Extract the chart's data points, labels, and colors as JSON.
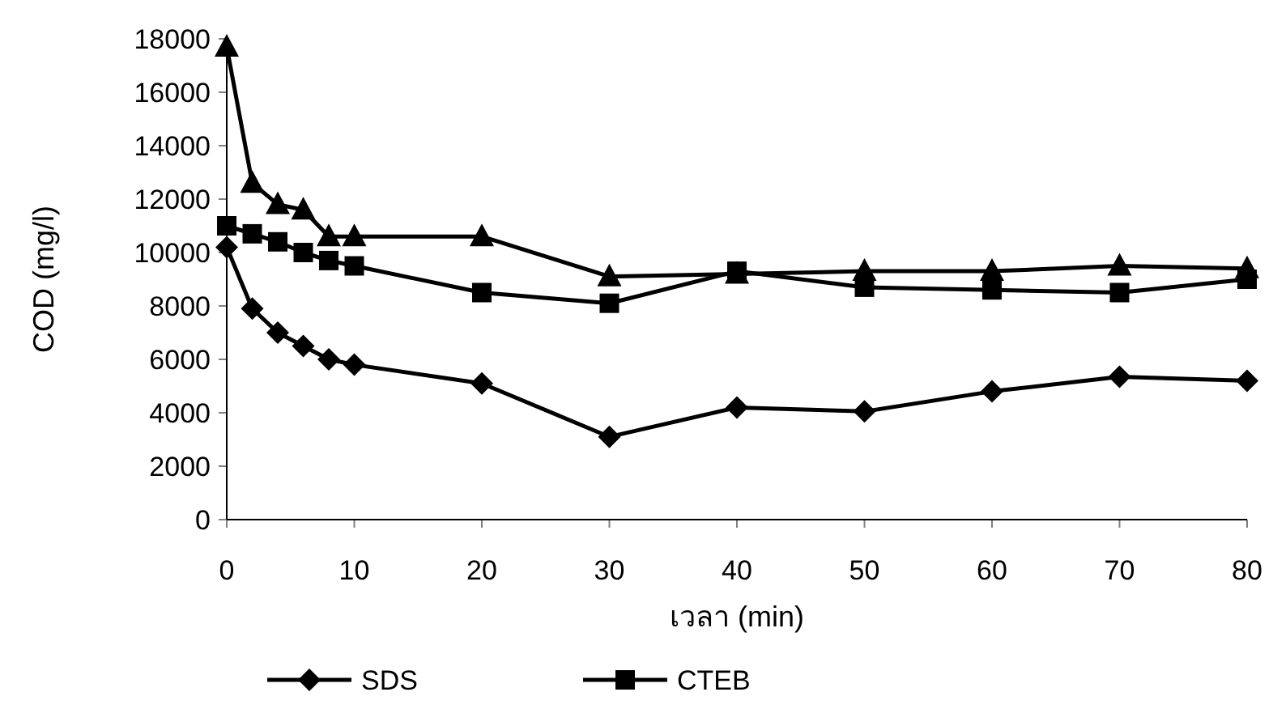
{
  "chart_data": {
    "type": "line",
    "xlabel": "เวลา (min)",
    "ylabel": "COD (mg/l)",
    "x": [
      0,
      2,
      4,
      6,
      8,
      10,
      20,
      30,
      40,
      50,
      60,
      70,
      80
    ],
    "xlim": [
      0,
      80
    ],
    "xticks": [
      0,
      10,
      20,
      30,
      40,
      50,
      60,
      70,
      80
    ],
    "ylim": [
      0,
      18000
    ],
    "yticks": [
      0,
      2000,
      4000,
      6000,
      8000,
      10000,
      12000,
      14000,
      16000,
      18000
    ],
    "grid": false,
    "legend": "bottom",
    "series": [
      {
        "name": "SDS",
        "color": "#000000",
        "marker": "diamond",
        "values": [
          10200,
          7900,
          7000,
          6500,
          6000,
          5800,
          5100,
          3100,
          4200,
          4050,
          4800,
          5350,
          5200
        ]
      },
      {
        "name": "CTEB",
        "color": "#000000",
        "marker": "square",
        "values": [
          11000,
          10700,
          10400,
          10000,
          9700,
          9500,
          8500,
          8100,
          9300,
          8700,
          8600,
          8500,
          9000
        ]
      },
      {
        "color": "#000000",
        "marker": "triangle",
        "values": [
          17700,
          12600,
          11800,
          11600,
          10600,
          10600,
          10600,
          9100,
          9200,
          9300,
          9300,
          9500,
          9400
        ]
      }
    ]
  }
}
